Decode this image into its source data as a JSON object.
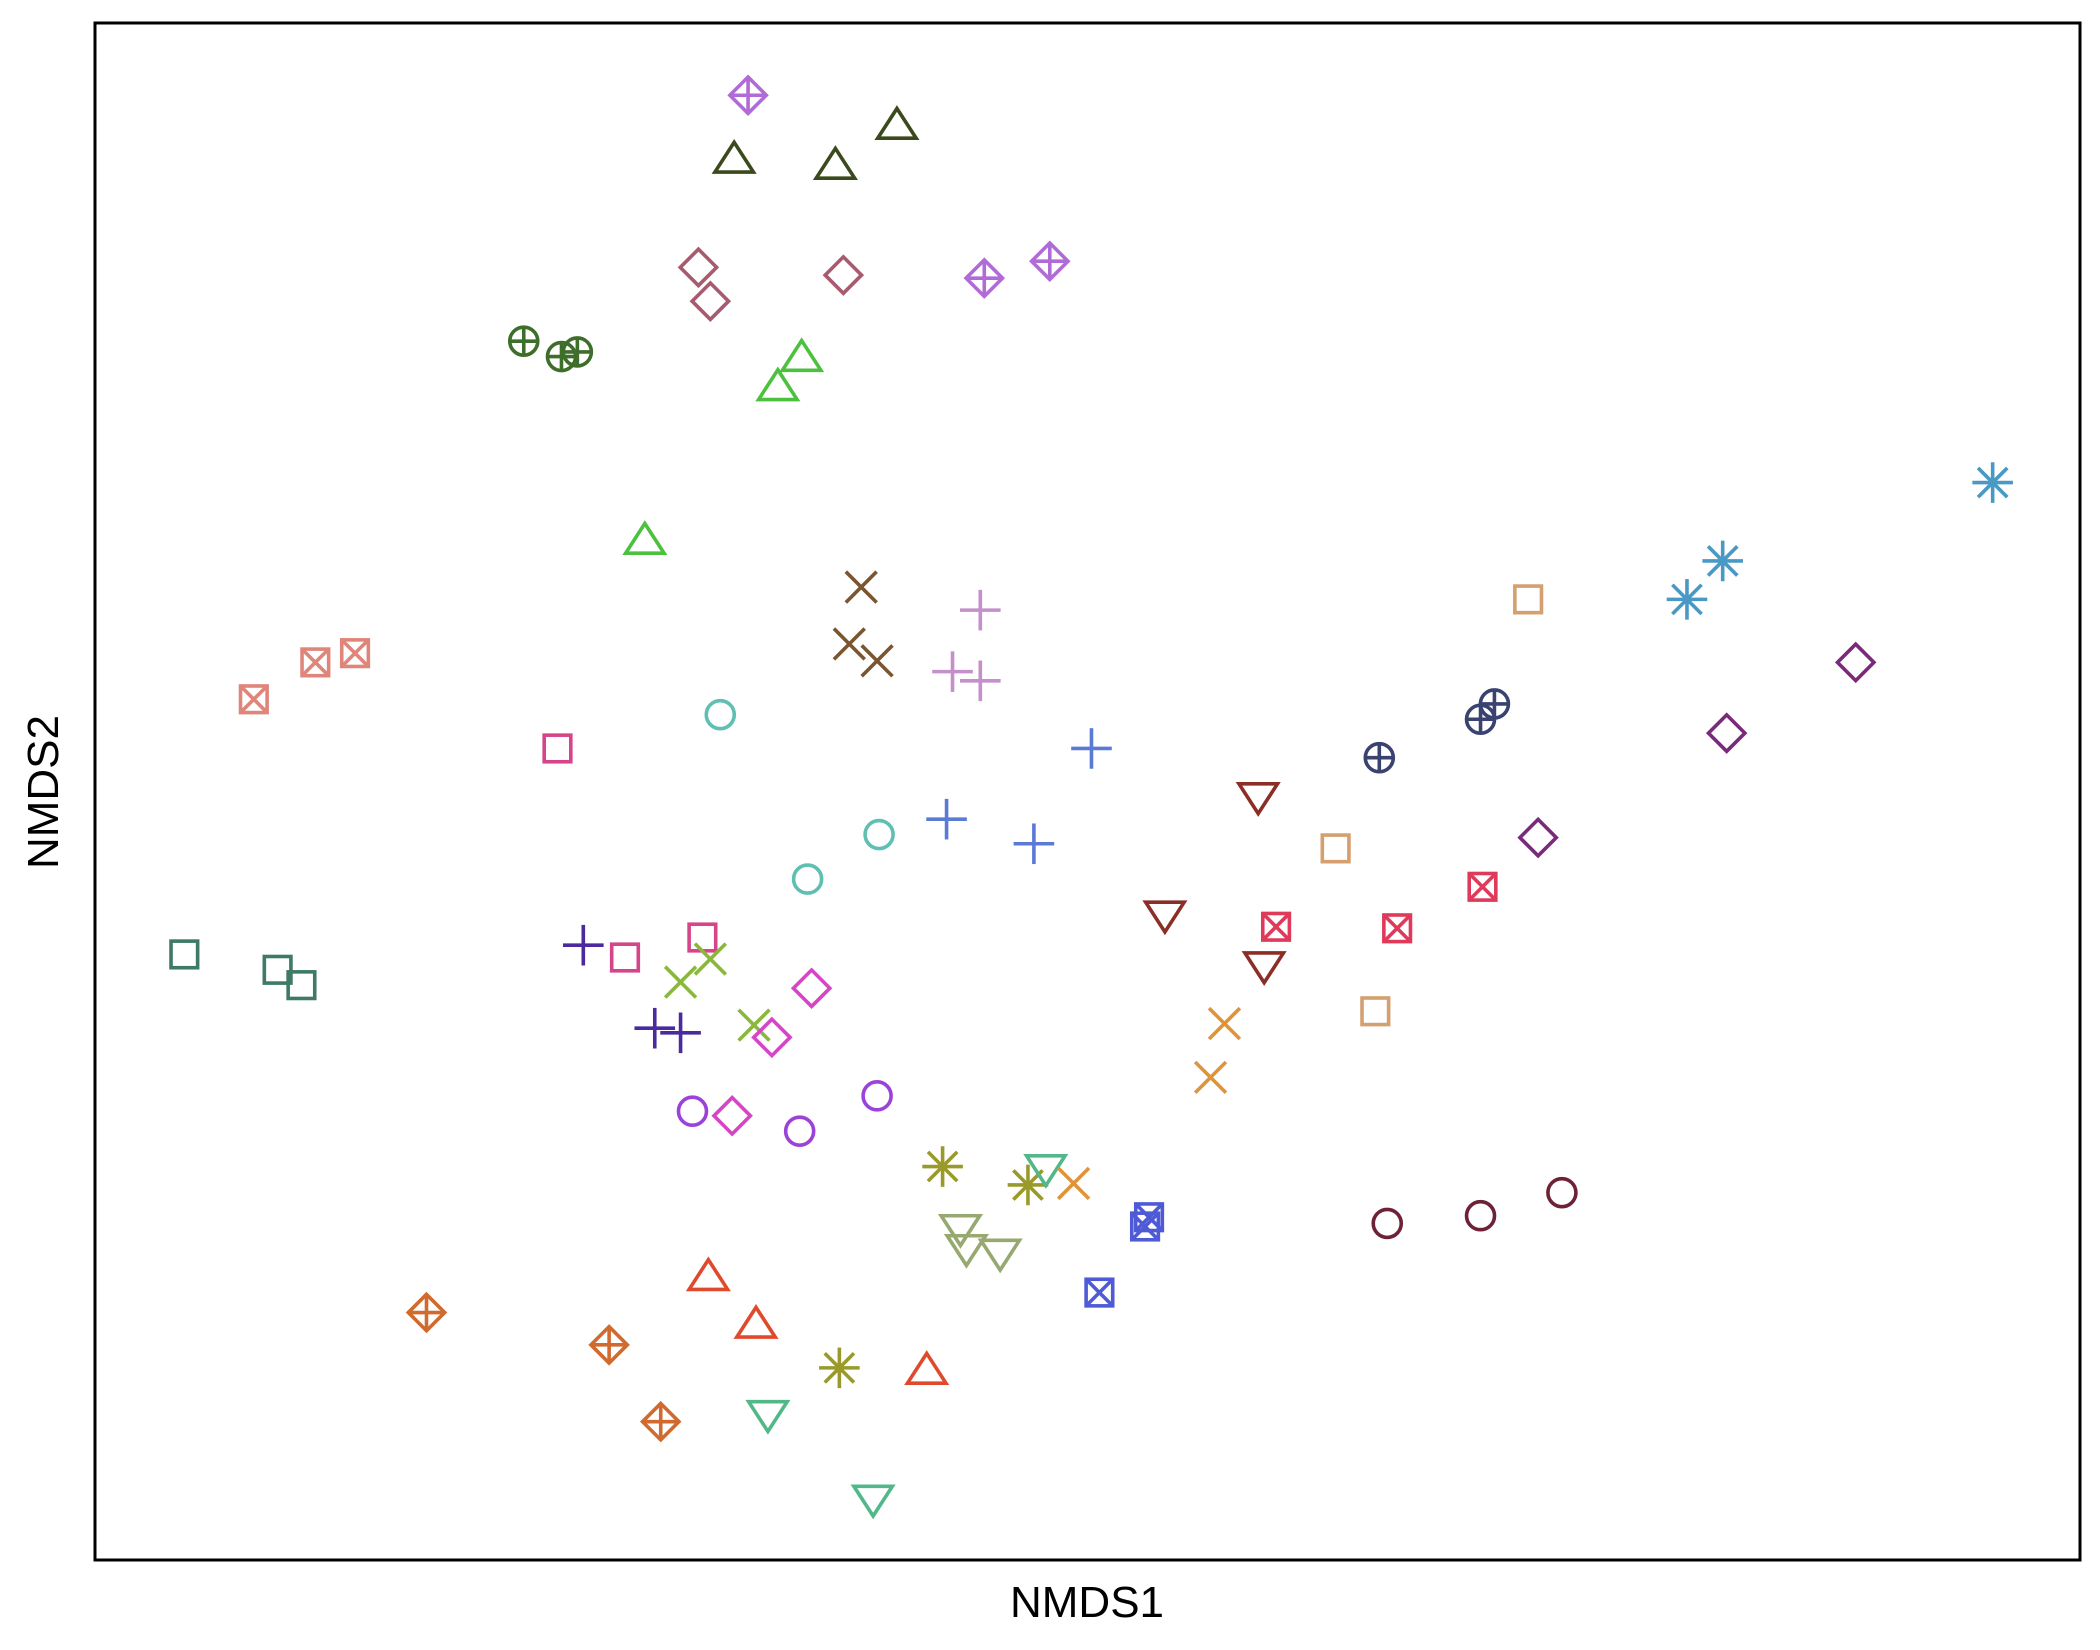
{
  "chart_data": {
    "type": "scatter",
    "title": "",
    "xlabel": "NMDS1",
    "ylabel": "NMDS2",
    "xlim": [
      0,
      1
    ],
    "ylim": [
      0,
      1
    ],
    "xticks": false,
    "yticks": false,
    "grid": false,
    "legend": "none",
    "series": [
      {
        "marker": "diamond-plus",
        "color": "#b06bd6",
        "points": [
          [
            0.329,
            0.953
          ],
          [
            0.448,
            0.834
          ],
          [
            0.481,
            0.845
          ]
        ]
      },
      {
        "marker": "triangle",
        "color": "#3b4a1c",
        "points": [
          [
            0.322,
            0.911
          ],
          [
            0.373,
            0.907
          ],
          [
            0.404,
            0.933
          ]
        ]
      },
      {
        "marker": "diamond",
        "color": "#a85a6e",
        "points": [
          [
            0.304,
            0.841
          ],
          [
            0.31,
            0.819
          ],
          [
            0.377,
            0.836
          ]
        ]
      },
      {
        "marker": "circle-plus",
        "color": "#3e6e2a",
        "points": [
          [
            0.216,
            0.793
          ],
          [
            0.235,
            0.783
          ],
          [
            0.243,
            0.786
          ]
        ]
      },
      {
        "marker": "triangle",
        "color": "#4cc13e",
        "points": [
          [
            0.344,
            0.763
          ],
          [
            0.356,
            0.782
          ],
          [
            0.277,
            0.663
          ]
        ]
      },
      {
        "marker": "x",
        "color": "#7a5530",
        "points": [
          [
            0.386,
            0.633
          ],
          [
            0.38,
            0.596
          ],
          [
            0.394,
            0.585
          ]
        ]
      },
      {
        "marker": "plus",
        "color": "#c48fcb",
        "points": [
          [
            0.446,
            0.618
          ],
          [
            0.432,
            0.578
          ],
          [
            0.446,
            0.572
          ]
        ]
      },
      {
        "marker": "square-x",
        "color": "#e0857a",
        "points": [
          [
            0.08,
            0.56
          ],
          [
            0.111,
            0.584
          ],
          [
            0.131,
            0.59
          ]
        ]
      },
      {
        "marker": "square",
        "color": "#d6448a",
        "points": [
          [
            0.233,
            0.528
          ],
          [
            0.306,
            0.405
          ],
          [
            0.267,
            0.392
          ]
        ]
      },
      {
        "marker": "circle",
        "color": "#5fbfb2",
        "points": [
          [
            0.315,
            0.55
          ],
          [
            0.395,
            0.472
          ],
          [
            0.359,
            0.443
          ]
        ]
      },
      {
        "marker": "plus",
        "color": "#5b7ad6",
        "points": [
          [
            0.502,
            0.528
          ],
          [
            0.429,
            0.482
          ],
          [
            0.473,
            0.466
          ]
        ]
      },
      {
        "marker": "square",
        "color": "#3e7a64",
        "points": [
          [
            0.045,
            0.394
          ],
          [
            0.104,
            0.374
          ],
          [
            0.092,
            0.384
          ]
        ]
      },
      {
        "marker": "plus",
        "color": "#4b2a9e",
        "points": [
          [
            0.246,
            0.4
          ],
          [
            0.282,
            0.346
          ],
          [
            0.295,
            0.343
          ]
        ]
      },
      {
        "marker": "x",
        "color": "#8ab83a",
        "points": [
          [
            0.295,
            0.376
          ],
          [
            0.31,
            0.391
          ],
          [
            0.332,
            0.348
          ]
        ]
      },
      {
        "marker": "diamond",
        "color": "#d645c8",
        "points": [
          [
            0.361,
            0.372
          ],
          [
            0.341,
            0.34
          ],
          [
            0.321,
            0.289
          ]
        ]
      },
      {
        "marker": "circle",
        "color": "#9b43d9",
        "points": [
          [
            0.301,
            0.292
          ],
          [
            0.355,
            0.279
          ],
          [
            0.394,
            0.302
          ]
        ]
      },
      {
        "marker": "asterisk",
        "color": "#9a9a2a",
        "points": [
          [
            0.427,
            0.256
          ],
          [
            0.47,
            0.244
          ],
          [
            0.375,
            0.125
          ]
        ]
      },
      {
        "marker": "triangle-down",
        "color": "#52b88a",
        "points": [
          [
            0.479,
            0.255
          ],
          [
            0.339,
            0.095
          ],
          [
            0.392,
            0.04
          ]
        ]
      },
      {
        "marker": "x",
        "color": "#e0943a",
        "points": [
          [
            0.493,
            0.245
          ],
          [
            0.569,
            0.349
          ],
          [
            0.562,
            0.314
          ]
        ]
      },
      {
        "marker": "triangle-down",
        "color": "#97a870",
        "points": [
          [
            0.436,
            0.216
          ],
          [
            0.439,
            0.203
          ],
          [
            0.456,
            0.2
          ]
        ]
      },
      {
        "marker": "square-x",
        "color": "#4f5ad6",
        "points": [
          [
            0.531,
            0.223
          ],
          [
            0.529,
            0.217
          ],
          [
            0.506,
            0.174
          ]
        ]
      },
      {
        "marker": "diamond-plus",
        "color": "#d06a2e",
        "points": [
          [
            0.167,
            0.161
          ],
          [
            0.259,
            0.14
          ],
          [
            0.285,
            0.09
          ]
        ]
      },
      {
        "marker": "triangle",
        "color": "#e04a2c",
        "points": [
          [
            0.309,
            0.184
          ],
          [
            0.333,
            0.153
          ],
          [
            0.419,
            0.123
          ]
        ]
      },
      {
        "marker": "triangle-down",
        "color": "#8a2e26",
        "points": [
          [
            0.586,
            0.497
          ],
          [
            0.539,
            0.42
          ],
          [
            0.589,
            0.387
          ]
        ]
      },
      {
        "marker": "square",
        "color": "#d4a070",
        "points": [
          [
            0.722,
            0.625
          ],
          [
            0.625,
            0.463
          ],
          [
            0.645,
            0.357
          ]
        ]
      },
      {
        "marker": "square-x",
        "color": "#e03a5a",
        "points": [
          [
            0.595,
            0.412
          ],
          [
            0.656,
            0.411
          ],
          [
            0.699,
            0.438
          ]
        ]
      },
      {
        "marker": "circle-plus",
        "color": "#3a4270",
        "points": [
          [
            0.647,
            0.522
          ],
          [
            0.698,
            0.547
          ],
          [
            0.705,
            0.557
          ]
        ]
      },
      {
        "marker": "diamond",
        "color": "#7a2a7a",
        "points": [
          [
            0.727,
            0.47
          ],
          [
            0.822,
            0.538
          ],
          [
            0.887,
            0.584
          ]
        ]
      },
      {
        "marker": "asterisk",
        "color": "#4a98c4",
        "points": [
          [
            0.802,
            0.625
          ],
          [
            0.82,
            0.65
          ],
          [
            0.956,
            0.701
          ]
        ]
      },
      {
        "marker": "circle",
        "color": "#6e2238",
        "points": [
          [
            0.651,
            0.219
          ],
          [
            0.698,
            0.224
          ],
          [
            0.739,
            0.239
          ]
        ]
      }
    ]
  }
}
